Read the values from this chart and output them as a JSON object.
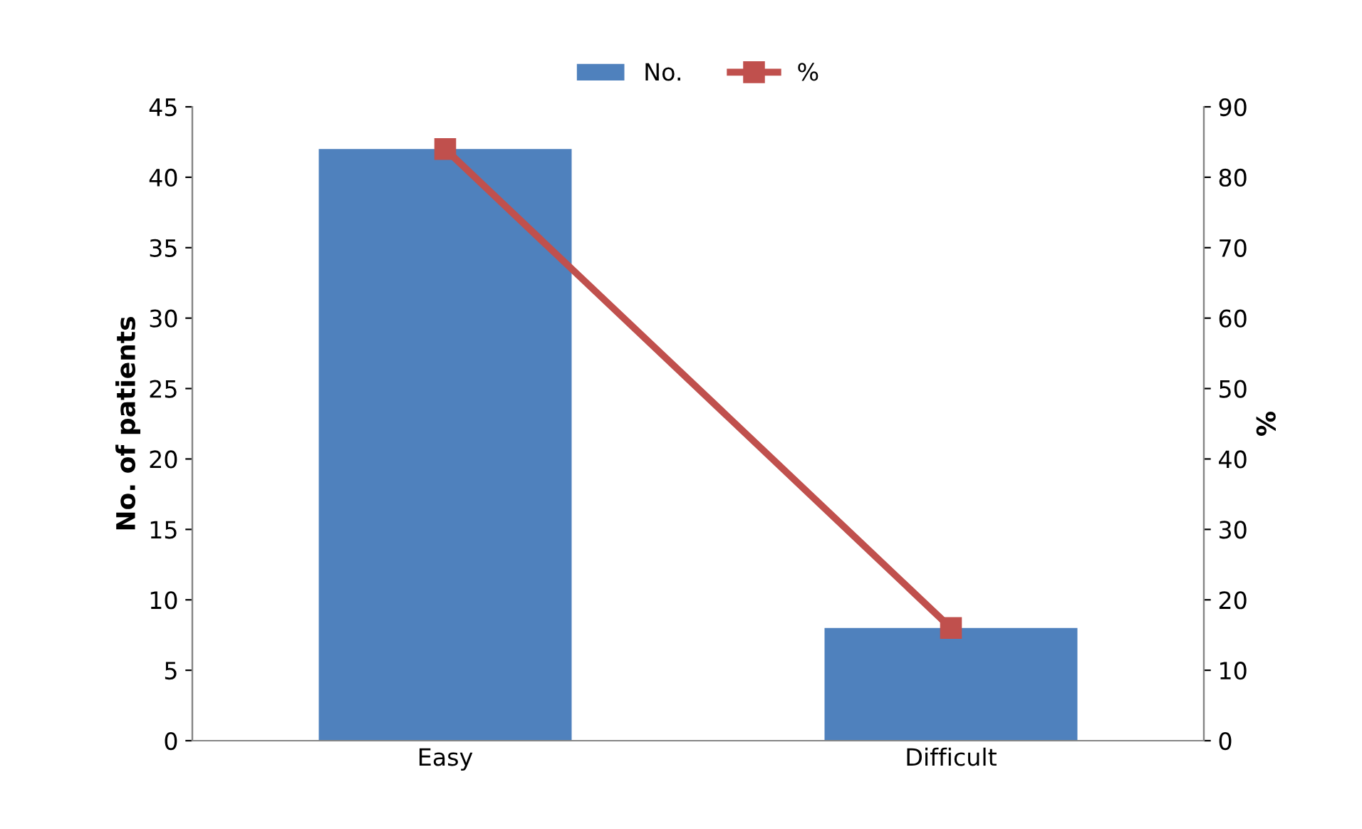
{
  "chart_data": {
    "type": "bar",
    "categories": [
      "Easy",
      "Difficult"
    ],
    "ylabel": "No. of patients",
    "y2label": "%",
    "series": [
      {
        "name": "No.",
        "color": "#4f81bd",
        "values": [
          42,
          8
        ]
      },
      {
        "name": "%",
        "type": "line",
        "axis": "y2",
        "color": "#c0504d",
        "values": [
          84,
          16
        ],
        "marker": "square",
        "line_style": "solid"
      }
    ],
    "ylim": [
      0,
      45
    ],
    "yticks": [
      0,
      5,
      10,
      15,
      20,
      25,
      30,
      35,
      40,
      45
    ],
    "y2lim": [
      0,
      90
    ],
    "y2ticks": [
      0,
      10,
      20,
      30,
      40,
      50,
      60,
      70,
      80,
      90
    ],
    "grid": false,
    "legend": "top"
  }
}
